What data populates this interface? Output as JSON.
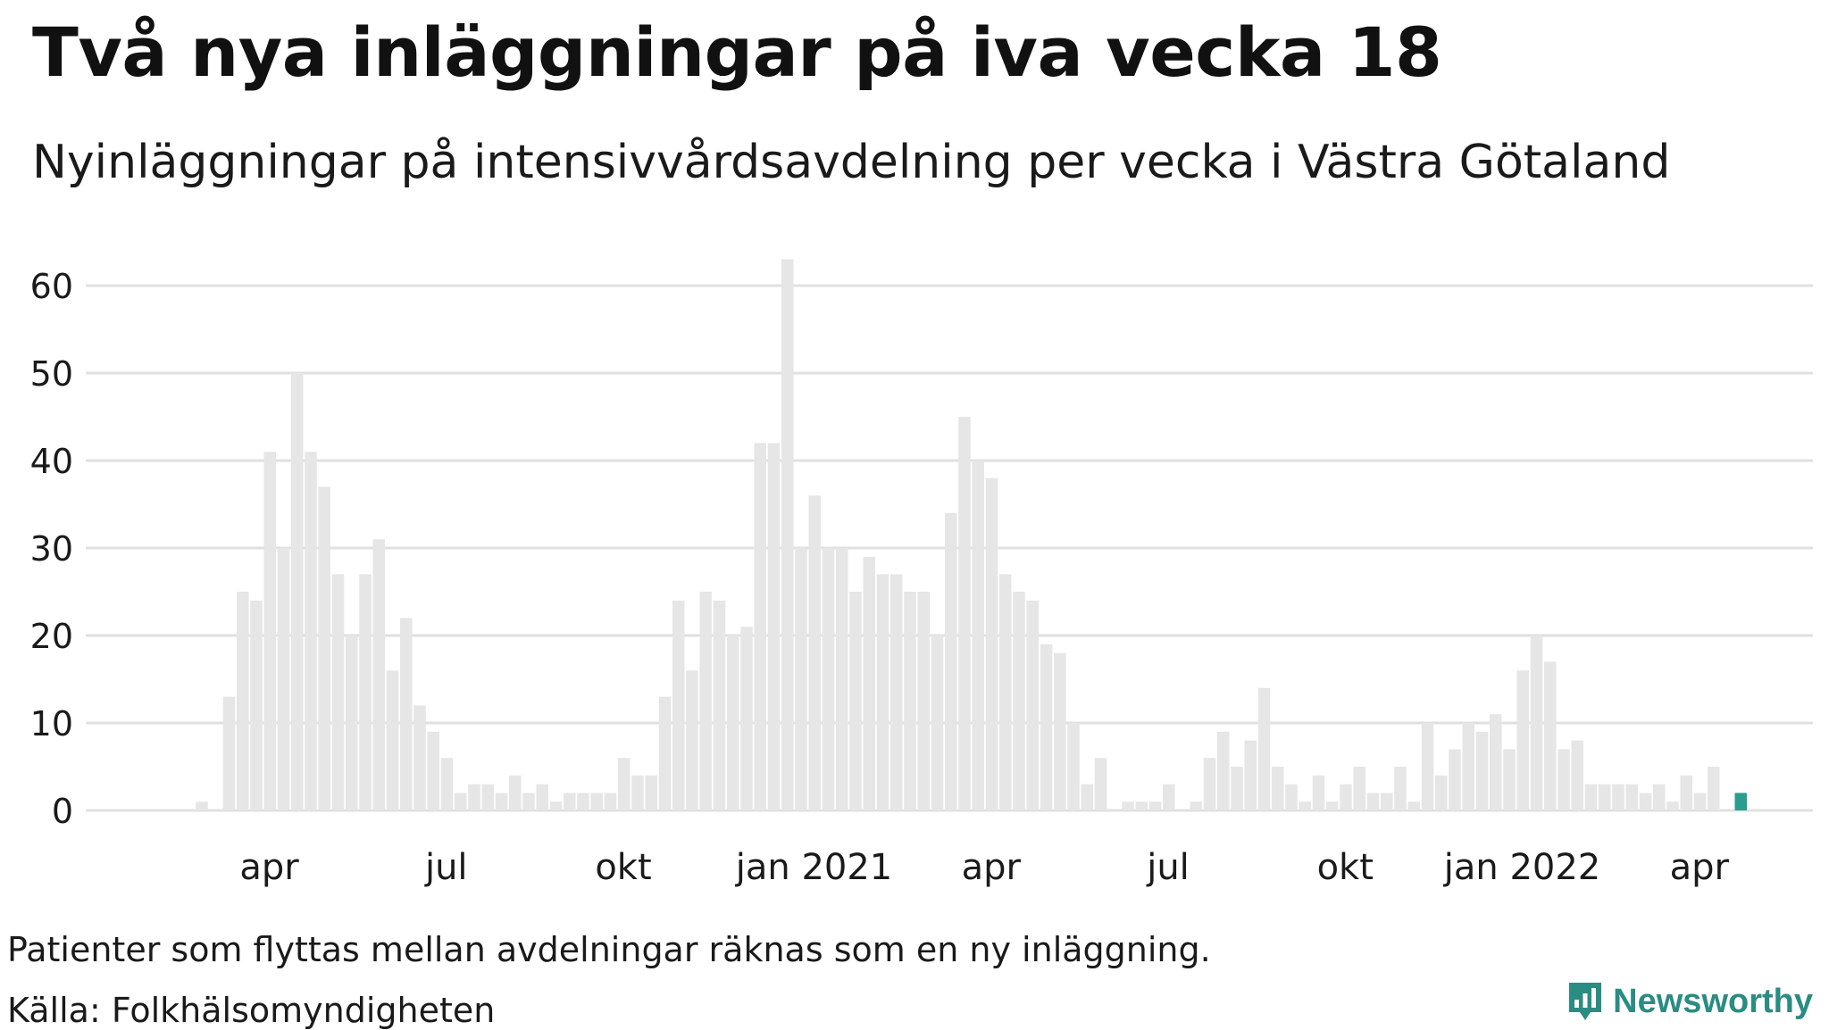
{
  "title": "Två nya inläggningar på iva vecka 18",
  "subtitle": "Nyinläggningar på intensivvårdsavdelning per vecka i Västra Götaland",
  "note": "Patienter som flyttas mellan avdelningar räknas som en ny inläggning.",
  "source": "Källa: Folkhälsomyndigheten",
  "brand": {
    "name": "Newsworthy",
    "icon": "newsworthy-logo-icon",
    "color": "#2a8c82"
  },
  "colors": {
    "bar": "#e6e6e6",
    "highlight": "#2a9d8f",
    "grid": "#e0e0e0"
  },
  "chart_data": {
    "type": "bar",
    "ylim": [
      0,
      63
    ],
    "yticks": [
      0,
      10,
      20,
      30,
      40,
      50,
      60
    ],
    "xtick_labels": [
      "apr",
      "jul",
      "okt",
      "jan 2021",
      "apr",
      "jul",
      "okt",
      "jan 2022",
      "apr"
    ],
    "highlight_last": true,
    "values": [
      0,
      1,
      0,
      13,
      25,
      24,
      41,
      30,
      50,
      41,
      37,
      27,
      20,
      27,
      31,
      16,
      22,
      12,
      9,
      6,
      2,
      3,
      3,
      2,
      4,
      2,
      3,
      1,
      2,
      2,
      2,
      2,
      6,
      4,
      4,
      13,
      24,
      16,
      25,
      24,
      20,
      21,
      42,
      42,
      63,
      30,
      36,
      30,
      30,
      25,
      29,
      27,
      27,
      25,
      25,
      20,
      34,
      45,
      40,
      38,
      27,
      25,
      24,
      19,
      18,
      10,
      3,
      6,
      0,
      1,
      1,
      1,
      3,
      0,
      1,
      6,
      9,
      5,
      8,
      14,
      5,
      3,
      1,
      4,
      1,
      3,
      5,
      2,
      2,
      5,
      1,
      10,
      4,
      7,
      10,
      9,
      11,
      7,
      16,
      20,
      17,
      7,
      8,
      3,
      3,
      3,
      3,
      2,
      3,
      1,
      4,
      2,
      5,
      0,
      2
    ]
  }
}
